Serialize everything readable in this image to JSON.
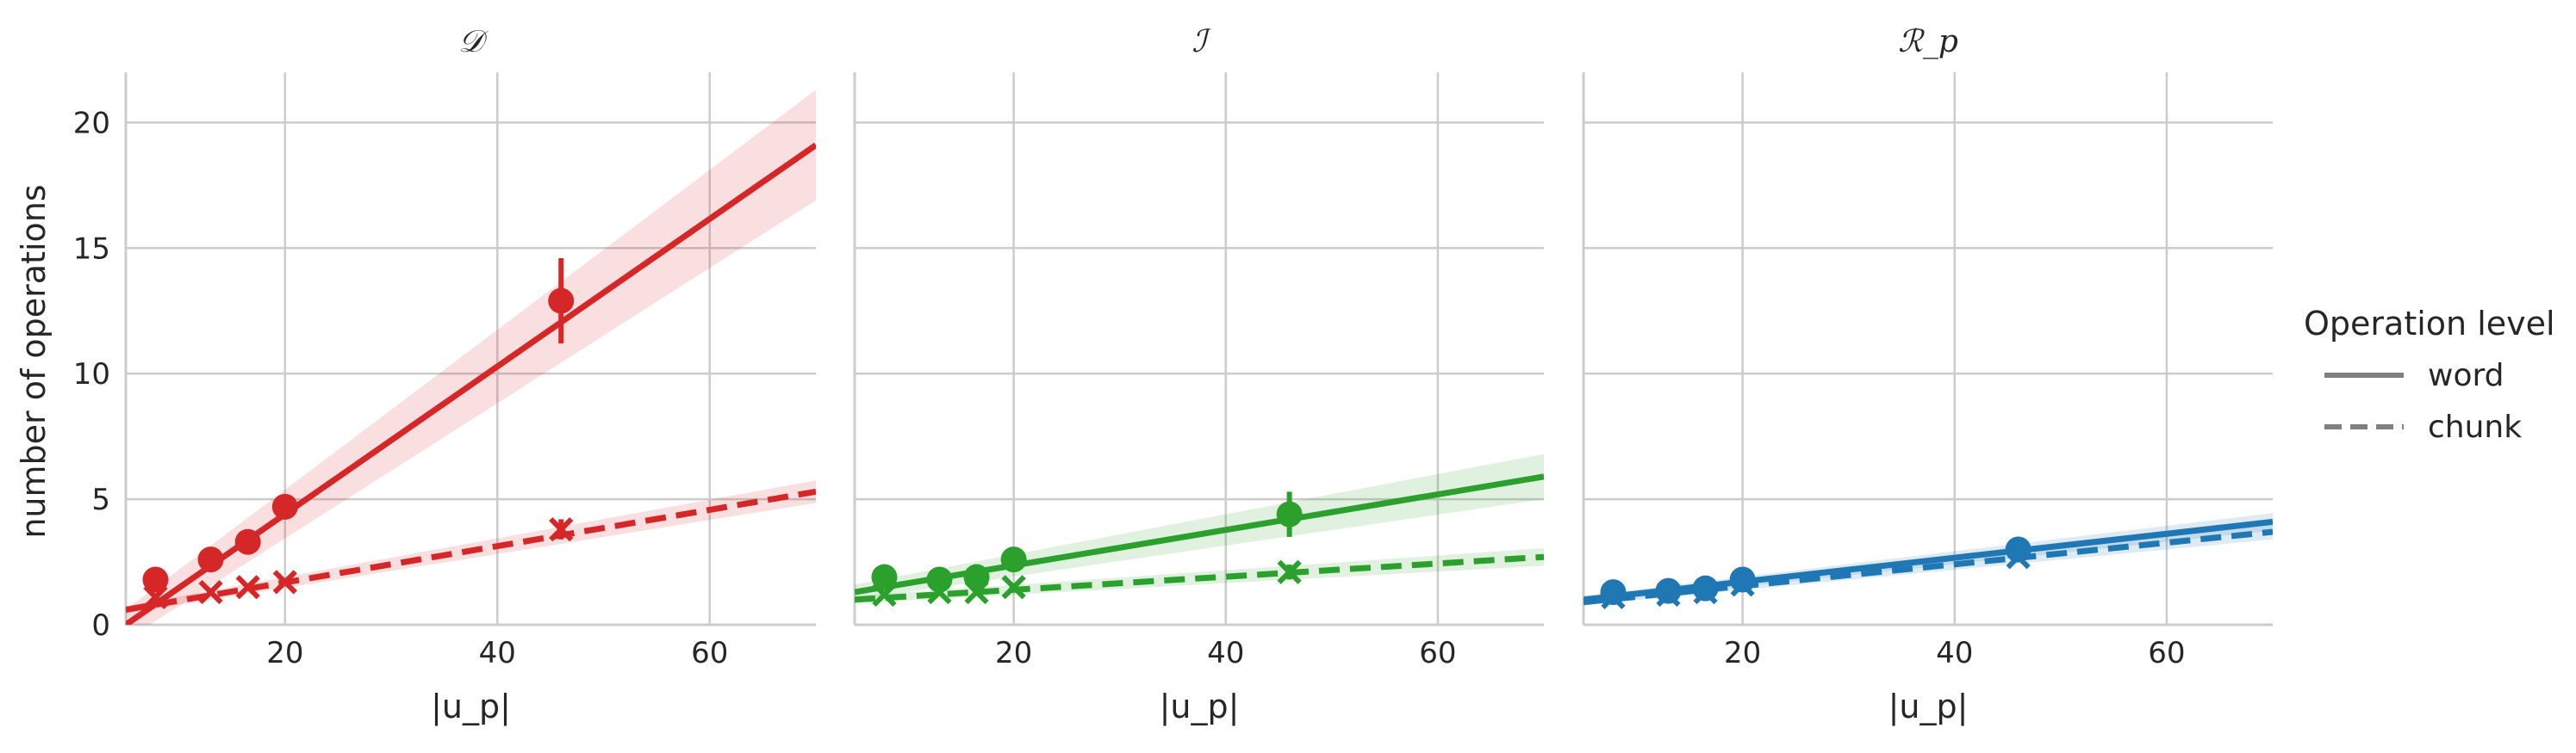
{
  "chart_data": [
    {
      "type": "scatter",
      "title": "𝒟",
      "xlabel": "|u_p|",
      "ylabel": "number of operations",
      "xlim": [
        5,
        70
      ],
      "ylim": [
        0,
        22
      ],
      "xticks": [
        "20",
        "40",
        "60"
      ],
      "yticks": [
        "0",
        "5",
        "10",
        "15",
        "20"
      ],
      "color": "#d62728",
      "grid": true,
      "series": [
        {
          "name": "word",
          "marker": "circle",
          "points": [
            [
              7.8,
              1.8
            ],
            [
              13,
              2.6
            ],
            [
              16.5,
              3.3
            ],
            [
              20,
              4.7
            ],
            [
              46,
              12.9
            ]
          ],
          "error": [
            0.1,
            0.15,
            0.2,
            0.25,
            1.7
          ],
          "fit": [
            [
              5,
              0.0
            ],
            [
              70,
              19.1
            ]
          ],
          "band_halfwidth": [
            0.6,
            2.2
          ]
        },
        {
          "name": "chunk",
          "marker": "x",
          "points": [
            [
              7.8,
              1.1
            ],
            [
              13,
              1.3
            ],
            [
              16.5,
              1.5
            ],
            [
              20,
              1.7
            ],
            [
              46,
              3.8
            ]
          ],
          "error": [
            0.05,
            0.05,
            0.08,
            0.1,
            0.4
          ],
          "fit": [
            [
              5,
              0.6
            ],
            [
              70,
              5.3
            ]
          ],
          "band_halfwidth": [
            0.15,
            0.45
          ]
        }
      ]
    },
    {
      "type": "scatter",
      "title": "ℐ",
      "xlabel": "|u_p|",
      "xlim": [
        5,
        70
      ],
      "ylim": [
        0,
        22
      ],
      "xticks": [
        "20",
        "40",
        "60"
      ],
      "color": "#2ca02c",
      "grid": true,
      "series": [
        {
          "name": "word",
          "marker": "circle",
          "points": [
            [
              7.8,
              1.9
            ],
            [
              13,
              1.8
            ],
            [
              16.5,
              1.9
            ],
            [
              20,
              2.6
            ],
            [
              46,
              4.4
            ]
          ],
          "error": [
            0.1,
            0.1,
            0.1,
            0.15,
            0.9
          ],
          "fit": [
            [
              5,
              1.3
            ],
            [
              70,
              5.9
            ]
          ],
          "band_halfwidth": [
            0.3,
            0.9
          ]
        },
        {
          "name": "chunk",
          "marker": "x",
          "points": [
            [
              7.8,
              1.2
            ],
            [
              13,
              1.3
            ],
            [
              16.5,
              1.3
            ],
            [
              20,
              1.5
            ],
            [
              46,
              2.1
            ]
          ],
          "error": [
            0.05,
            0.05,
            0.05,
            0.1,
            0.3
          ],
          "fit": [
            [
              5,
              1.0
            ],
            [
              70,
              2.7
            ]
          ],
          "band_halfwidth": [
            0.15,
            0.35
          ]
        }
      ]
    },
    {
      "type": "scatter",
      "title": "ℛ_p",
      "xlabel": "|u_p|",
      "xlim": [
        5,
        70
      ],
      "ylim": [
        0,
        22
      ],
      "xticks": [
        "20",
        "40",
        "60"
      ],
      "color": "#1f77b4",
      "grid": true,
      "series": [
        {
          "name": "word",
          "marker": "circle",
          "points": [
            [
              7.8,
              1.3
            ],
            [
              13,
              1.35
            ],
            [
              16.5,
              1.45
            ],
            [
              20,
              1.8
            ],
            [
              46,
              3.0
            ]
          ],
          "error": [
            0.08,
            0.08,
            0.08,
            0.1,
            0.25
          ],
          "fit": [
            [
              5,
              1.0
            ],
            [
              70,
              4.1
            ]
          ],
          "band_halfwidth": [
            0.15,
            0.35
          ]
        },
        {
          "name": "chunk",
          "marker": "x",
          "points": [
            [
              7.8,
              1.1
            ],
            [
              13,
              1.2
            ],
            [
              16.5,
              1.3
            ],
            [
              20,
              1.6
            ],
            [
              46,
              2.7
            ]
          ],
          "error": [
            0.05,
            0.05,
            0.05,
            0.08,
            0.2
          ],
          "fit": [
            [
              5,
              0.9
            ],
            [
              70,
              3.7
            ]
          ],
          "band_halfwidth": [
            0.12,
            0.3
          ]
        }
      ]
    }
  ],
  "legend": {
    "title": "Operation level",
    "position": "right",
    "color": "#808080",
    "items": [
      {
        "label": "word",
        "style": "solid"
      },
      {
        "label": "chunk",
        "style": "dashed"
      }
    ]
  }
}
